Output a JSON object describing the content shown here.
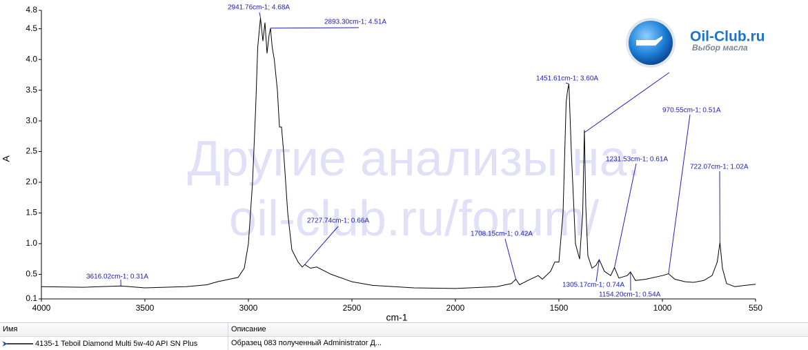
{
  "chart_data": {
    "type": "line",
    "ylabel": "A",
    "xlabel": "cm-1",
    "color": "#000000",
    "xlim": [
      4000,
      550
    ],
    "ylim": [
      0.1,
      4.8
    ],
    "xticks": [
      4000,
      3500,
      3000,
      2500,
      2000,
      1500,
      1000,
      550
    ],
    "yticks": [
      0.1,
      0.5,
      {
        "value": 1,
        "label": "1.0"
      },
      1.5,
      {
        "value": 2,
        "label": "2.0"
      },
      2.5,
      {
        "value": 3,
        "label": "3.0"
      },
      3.5,
      {
        "value": 4,
        "label": "4.0"
      },
      4.5,
      4.8
    ],
    "x": [
      4000,
      3800,
      3616.02,
      3500,
      3300,
      3200,
      3150,
      3050,
      3020,
      3000,
      2980,
      2965,
      2955,
      2941.76,
      2930,
      2920,
      2910,
      2900,
      2893.3,
      2885,
      2875,
      2860,
      2850,
      2840,
      2830,
      2810,
      2790,
      2760,
      2740,
      2727.74,
      2700,
      2670,
      2600,
      2500,
      2400,
      2200,
      2000,
      1800,
      1730,
      1708.15,
      1690,
      1650,
      1600,
      1580,
      1540,
      1520,
      1500,
      1480,
      1465,
      1458,
      1451.61,
      1440,
      1420,
      1400,
      1385,
      1377,
      1370,
      1360,
      1340,
      1320,
      1305.17,
      1280,
      1250,
      1231.53,
      1210,
      1170,
      1154.2,
      1130,
      1080,
      1000,
      970.55,
      940,
      890,
      850,
      800,
      760,
      735,
      722.07,
      710,
      690,
      650,
      600,
      550
    ],
    "values": [
      0.3,
      0.29,
      0.31,
      0.28,
      0.3,
      0.33,
      0.38,
      0.45,
      0.6,
      1.0,
      2.0,
      3.2,
      4.2,
      4.68,
      4.3,
      4.6,
      4.1,
      4.4,
      4.51,
      4.2,
      4.0,
      3.5,
      2.9,
      2.9,
      2.5,
      1.5,
      0.9,
      0.7,
      0.62,
      0.66,
      0.6,
      0.62,
      0.5,
      0.38,
      0.32,
      0.28,
      0.27,
      0.3,
      0.35,
      0.42,
      0.33,
      0.4,
      0.48,
      0.42,
      0.55,
      0.7,
      0.7,
      1.5,
      3.3,
      3.5,
      3.6,
      2.5,
      1.0,
      0.75,
      1.5,
      2.85,
      1.6,
      0.8,
      0.6,
      0.65,
      0.74,
      0.55,
      0.48,
      0.61,
      0.44,
      0.48,
      0.54,
      0.4,
      0.42,
      0.48,
      0.51,
      0.42,
      0.38,
      0.37,
      0.4,
      0.48,
      0.7,
      1.02,
      0.6,
      0.35,
      0.3,
      0.32,
      0.34
    ],
    "annotations": [
      {
        "label": "3616.02cm-1; 0.31A",
        "x": 3616.02,
        "y": 0.31
      },
      {
        "label": "2941.76cm-1; 4.68A",
        "x": 2941.76,
        "y": 4.68
      },
      {
        "label": "2893.30cm-1; 4.51A",
        "x": 2893.3,
        "y": 4.51
      },
      {
        "label": "2727.74cm-1; 0.66A",
        "x": 2727.74,
        "y": 0.66
      },
      {
        "label": "1708.15cm-1; 0.42A",
        "x": 1708.15,
        "y": 0.42
      },
      {
        "label": "1451.61cm-1; 3.60A",
        "x": 1451.61,
        "y": 3.6
      },
      {
        "label": "1231.53cm-1; 0.61A",
        "x": 1231.53,
        "y": 0.61
      },
      {
        "label": "970.55cm-1; 0.51A",
        "x": 970.55,
        "y": 0.51
      },
      {
        "label": "722.07cm-1; 1.02A",
        "x": 722.07,
        "y": 1.02
      },
      {
        "label": "1305.17cm-1; 0.74A",
        "x": 1305.17,
        "y": 0.74
      },
      {
        "label": "1154.20cm-1; 0.54A",
        "x": 1154.2,
        "y": 0.54
      }
    ]
  },
  "watermark": {
    "line1": "Другие анализы на:",
    "line2": "oil-club.ru/forum/"
  },
  "logo": {
    "name": "Oil-Club.ru",
    "tagline": "Выбор масла"
  },
  "table": {
    "headers": [
      "Имя",
      "Описание"
    ],
    "rows": [
      [
        "4135-1 Teboil Diamond Multi 5w-40 API SN Plus",
        "Образец 083 полученный Administrator Д..."
      ]
    ]
  }
}
